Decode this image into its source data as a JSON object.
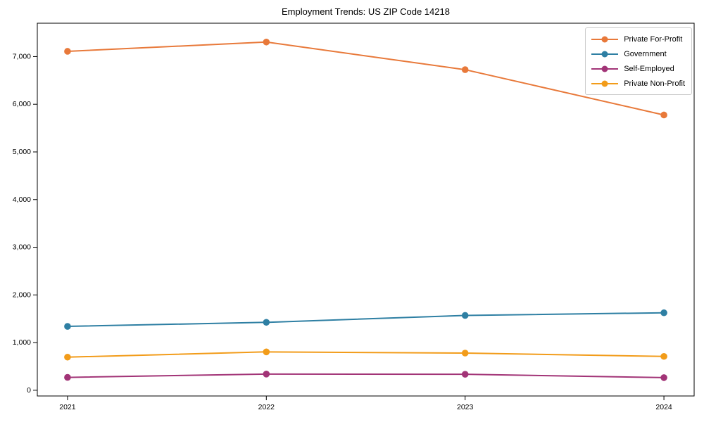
{
  "title": "Employment Trends: US ZIP Code 14218",
  "chart_data": {
    "type": "line",
    "title": "Employment Trends: US ZIP Code 14218",
    "categories": [
      "2021",
      "2022",
      "2023",
      "2024"
    ],
    "series": [
      {
        "name": "Private For-Profit",
        "color": "#E8793A",
        "values": [
          7110,
          7305,
          6725,
          5775
        ]
      },
      {
        "name": "Government",
        "color": "#2E7FA3",
        "values": [
          1340,
          1425,
          1570,
          1625
        ]
      },
      {
        "name": "Self-Employed",
        "color": "#A23477",
        "values": [
          270,
          340,
          335,
          265
        ]
      },
      {
        "name": "Private Non-Profit",
        "color": "#F29C1A",
        "values": [
          695,
          805,
          780,
          710
        ]
      }
    ],
    "xlabel": "",
    "ylabel": "",
    "ylim": [
      -120,
      7700
    ],
    "yticks": [
      0,
      1000,
      2000,
      3000,
      4000,
      5000,
      6000,
      7000
    ],
    "ytick_labels": [
      "0",
      "1,000",
      "2,000",
      "3,000",
      "4,000",
      "5,000",
      "6,000",
      "7,000"
    ],
    "grid": false,
    "legend_position": "top-right",
    "marker": "circle",
    "axis_color": "#000000"
  }
}
